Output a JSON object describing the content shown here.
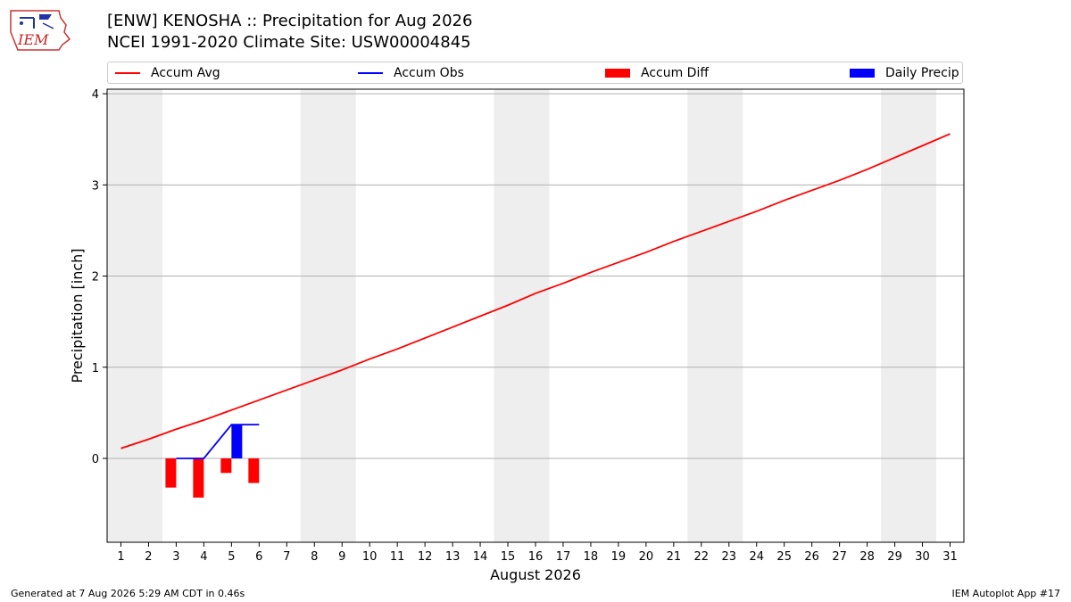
{
  "header": {
    "title_line1": "[ENW] KENOSHA :: Precipitation for Aug 2026",
    "title_line2": "NCEI 1991-2020 Climate Site: USW00004845",
    "logo_text": "IEM"
  },
  "legend": [
    {
      "label": "Accum Avg",
      "color": "#ff0000",
      "kind": "line"
    },
    {
      "label": "Accum Obs",
      "color": "#0000ff",
      "kind": "line"
    },
    {
      "label": "Accum Diff",
      "color": "#ff0000",
      "kind": "patch"
    },
    {
      "label": "Daily Precip",
      "color": "#0000ff",
      "kind": "patch"
    }
  ],
  "footer": {
    "left": "Generated at 7 Aug 2026 5:29 AM CDT in 0.46s",
    "right": "IEM Autoplot App #17"
  },
  "chart_data": {
    "type": "line",
    "xlabel": "August 2026",
    "ylabel": "Precipitation [inch]",
    "xlim": [
      0.5,
      31.5
    ],
    "ylim": [
      -0.92,
      4.05
    ],
    "x_ticks": [
      1,
      2,
      3,
      4,
      5,
      6,
      7,
      8,
      9,
      10,
      11,
      12,
      13,
      14,
      15,
      16,
      17,
      18,
      19,
      20,
      21,
      22,
      23,
      24,
      25,
      26,
      27,
      28,
      29,
      30,
      31
    ],
    "y_ticks": [
      0,
      1,
      2,
      3,
      4
    ],
    "grid": "horizontal",
    "legend_placement": "top",
    "weekend_shading": [
      [
        0.5,
        2.5
      ],
      [
        7.5,
        9.5
      ],
      [
        14.5,
        16.5
      ],
      [
        21.5,
        23.5
      ],
      [
        28.5,
        30.5
      ]
    ],
    "series": [
      {
        "name": "Accum Avg",
        "type": "line",
        "color": "#ff0000",
        "x": [
          1,
          2,
          3,
          4,
          5,
          6,
          7,
          8,
          9,
          10,
          11,
          12,
          13,
          14,
          15,
          16,
          17,
          18,
          19,
          20,
          21,
          22,
          23,
          24,
          25,
          26,
          27,
          28,
          29,
          30,
          31
        ],
        "values": [
          0.11,
          0.21,
          0.32,
          0.42,
          0.53,
          0.64,
          0.75,
          0.86,
          0.97,
          1.09,
          1.2,
          1.32,
          1.44,
          1.56,
          1.68,
          1.81,
          1.92,
          2.04,
          2.15,
          2.26,
          2.38,
          2.49,
          2.6,
          2.71,
          2.83,
          2.94,
          3.05,
          3.17,
          3.3,
          3.43,
          3.56
        ]
      },
      {
        "name": "Accum Obs",
        "type": "step",
        "color": "#0000ff",
        "x": [
          3,
          4,
          5,
          6
        ],
        "values": [
          0.0,
          0.0,
          0.37,
          0.37
        ]
      },
      {
        "name": "Accum Diff",
        "type": "bar",
        "color": "#ff0000",
        "x": [
          3,
          4,
          5,
          6
        ],
        "values": [
          -0.32,
          -0.43,
          -0.16,
          -0.27
        ]
      },
      {
        "name": "Daily Precip",
        "type": "bar",
        "color": "#0000ff",
        "x": [
          3,
          4,
          5,
          6
        ],
        "values": [
          0.0,
          0.0,
          0.37,
          0.0
        ]
      }
    ]
  }
}
